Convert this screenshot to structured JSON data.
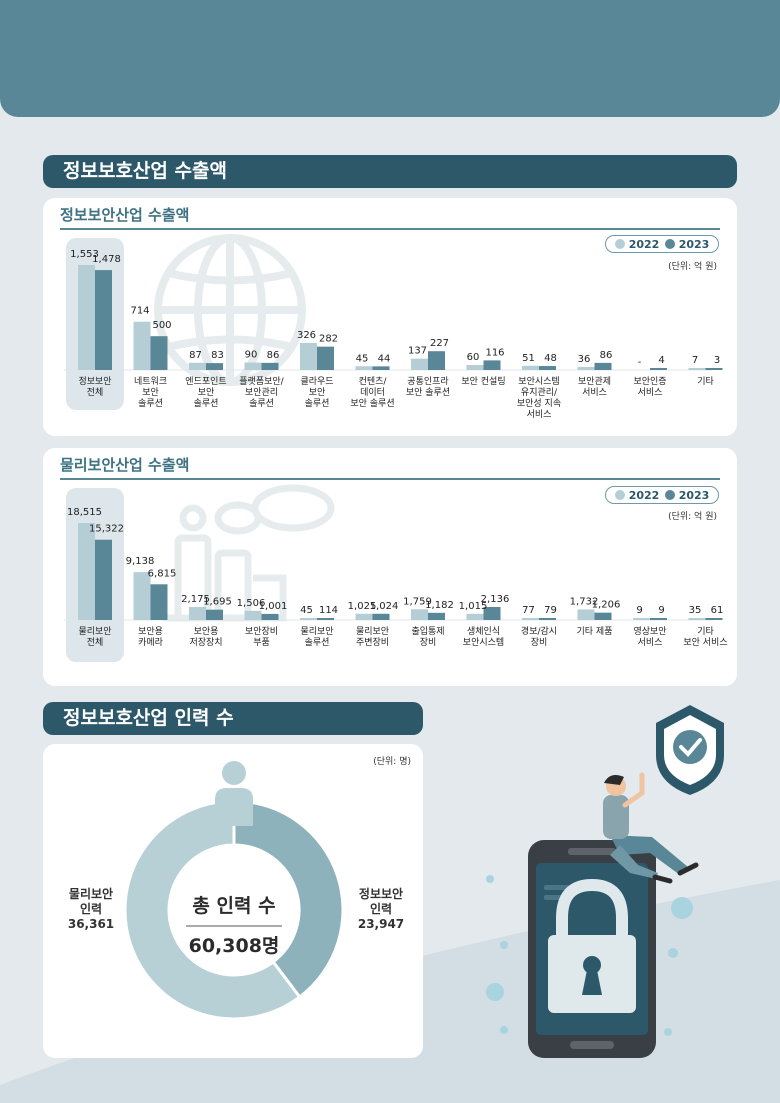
{
  "sections": {
    "export_title": "정보보호산업 수출액",
    "workforce_title": "정보보호산업 인력 수"
  },
  "legend": {
    "y2022": "2022",
    "y2023": "2023"
  },
  "colors": {
    "c2022": "#b5cdd5",
    "c2023": "#5a8797",
    "highlight": "#dde6ea"
  },
  "chart_data": [
    {
      "type": "bar",
      "title": "정보보안산업 수출액",
      "unit": "(단위: 억 원)",
      "series": [
        {
          "name": "2022"
        },
        {
          "name": "2023"
        }
      ],
      "categories": [
        [
          "정보보안",
          "전체"
        ],
        [
          "네트워크",
          "보안",
          "솔루션"
        ],
        [
          "엔드포인트",
          "보안",
          "솔루션"
        ],
        [
          "플랫폼보안/",
          "보안관리",
          "솔루션"
        ],
        [
          "클라우드",
          "보안",
          "솔루션"
        ],
        [
          "컨텐츠/",
          "데이터",
          "보안 솔루션"
        ],
        [
          "공통인프라",
          "보안 솔루션"
        ],
        [
          "보안 컨설팅"
        ],
        [
          "보안시스템",
          "유지관리/",
          "보안성 지속",
          "서비스"
        ],
        [
          "보안관제",
          "서비스"
        ],
        [
          "보안인증",
          "서비스"
        ],
        [
          "기타"
        ]
      ],
      "values_2022": [
        1553,
        714,
        87,
        90,
        326,
        45,
        137,
        60,
        51,
        36,
        null,
        7
      ],
      "values_2023": [
        1478,
        500,
        83,
        86,
        282,
        44,
        227,
        116,
        48,
        86,
        4,
        3
      ],
      "labels_2022": [
        "1,553",
        "714",
        "87",
        "90",
        "326",
        "45",
        "137",
        "60",
        "51",
        "36",
        "-",
        "7"
      ],
      "labels_2023": [
        "1,478",
        "500",
        "83",
        "86",
        "282",
        "44",
        "227",
        "116",
        "48",
        "86",
        "4",
        "3"
      ]
    },
    {
      "type": "bar",
      "title": "물리보안산업 수출액",
      "unit": "(단위: 억 원)",
      "series": [
        {
          "name": "2022"
        },
        {
          "name": "2023"
        }
      ],
      "categories": [
        [
          "물리보안",
          "전체"
        ],
        [
          "보안용",
          "카메라"
        ],
        [
          "보안용",
          "저장장치"
        ],
        [
          "보안장비",
          "부품"
        ],
        [
          "물리보안",
          "솔루션"
        ],
        [
          "물리보안",
          "주변장비"
        ],
        [
          "출입통제",
          "장비"
        ],
        [
          "생체인식",
          "보안시스템"
        ],
        [
          "경보/감시",
          "장비"
        ],
        [
          "기타 제품"
        ],
        [
          "영상보안",
          "서비스"
        ],
        [
          "기타",
          "보안 서비스"
        ]
      ],
      "values_2022": [
        18515,
        9138,
        2175,
        1506,
        45,
        1025,
        1759,
        1015,
        77,
        1732,
        9,
        35
      ],
      "values_2023": [
        15322,
        6815,
        1695,
        1001,
        114,
        1024,
        1182,
        2136,
        79,
        1206,
        9,
        61
      ],
      "labels_2022": [
        "18,515",
        "9,138",
        "2,175",
        "1,506",
        "45",
        "1,025",
        "1,759",
        "1,015",
        "77",
        "1,732",
        "9",
        "35"
      ],
      "labels_2023": [
        "15,322",
        "6,815",
        "1,695",
        "1,001",
        "114",
        "1,024",
        "1,182",
        "2,136",
        "79",
        "1,206",
        "9",
        "61"
      ]
    },
    {
      "type": "pie",
      "unit": "(단위: 명)",
      "center_title": "총 인력 수",
      "center_value": "60,308명",
      "slices": [
        {
          "name": "정보보안 인력",
          "value": 23947,
          "label_lines": [
            "정보보안",
            "인력",
            "23,947"
          ],
          "color": "#8db2bc"
        },
        {
          "name": "물리보안 인력",
          "value": 36361,
          "label_lines": [
            "물리보안",
            "인력",
            "36,361"
          ],
          "color": "#b7d0d6"
        }
      ]
    }
  ]
}
